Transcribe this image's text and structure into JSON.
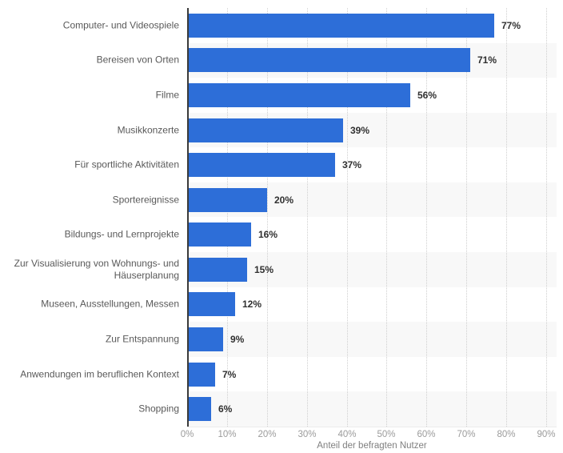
{
  "chart_data": {
    "type": "bar",
    "orientation": "horizontal",
    "title": "",
    "categories": [
      "Computer- und Videospiele",
      "Bereisen von Orten",
      "Filme",
      "Musikkonzerte",
      "Für sportliche Aktivitäten",
      "Sportereignisse",
      "Bildungs- und Lernprojekte",
      "Zur Visualisierung von Wohnungs- und Häuserplanung",
      "Museen, Ausstellungen, Messen",
      "Zur Entspannung",
      "Anwendungen im beruflichen Kontext",
      "Shopping"
    ],
    "values": [
      77,
      71,
      56,
      39,
      37,
      20,
      16,
      15,
      12,
      9,
      7,
      6
    ],
    "value_labels": [
      "77%",
      "71%",
      "56%",
      "39%",
      "37%",
      "20%",
      "16%",
      "15%",
      "12%",
      "9%",
      "7%",
      "6%"
    ],
    "xlabel": "Anteil der befragten Nutzer",
    "ylabel": "",
    "xlim": [
      0,
      90
    ],
    "x_ticks": [
      "0%",
      "10%",
      "20%",
      "30%",
      "40%",
      "50%",
      "60%",
      "70%",
      "80%",
      "90%"
    ],
    "grid": "vertical-dotted",
    "legend": "none",
    "zebra_rows": true,
    "colors": {
      "bar": "#2d6ed8",
      "band_even": "#f8f8f8",
      "gridline": "#cfcfcf",
      "axis_line": "#3a3a3a",
      "category_label": "#595959",
      "value_label": "#303030",
      "tick_label": "#9b9b9b",
      "axis_title": "#7f7f7f",
      "background": "#ffffff"
    }
  }
}
